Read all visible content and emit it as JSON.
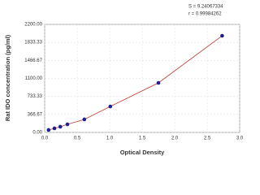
{
  "chart_data": {
    "type": "scatter",
    "y_label": "Rat IDO concentration (pg/ml)",
    "x_label": "Optical Density",
    "annotations": [
      "S = 9.24067334",
      "r = 0.99984262"
    ],
    "series": [
      {
        "color": "#1f1f8f",
        "line_color": "#c0392b",
        "x": [
          0.06,
          0.15,
          0.24,
          0.35,
          0.61,
          1.01,
          1.75,
          2.73
        ],
        "values": [
          50,
          83,
          116,
          165,
          265,
          529,
          1009,
          1968
        ]
      }
    ],
    "xlim": [
      0,
      3
    ],
    "xticks": [
      {
        "value": 0,
        "label": "0.0"
      },
      0.5,
      {
        "value": 1,
        "label": "1.0"
      },
      1.5,
      {
        "value": 2,
        "label": "2.0"
      },
      2.5,
      {
        "value": 3,
        "label": "3.0"
      }
    ],
    "ylim": [
      0,
      2200
    ],
    "yticks": [
      {
        "value": 0,
        "label": "0.00"
      },
      366.67,
      733.33,
      {
        "value": 1100,
        "label": "1100.00"
      },
      1466.67,
      1833.33,
      {
        "value": 2200,
        "label": "2200.00"
      }
    ],
    "grid": true
  }
}
